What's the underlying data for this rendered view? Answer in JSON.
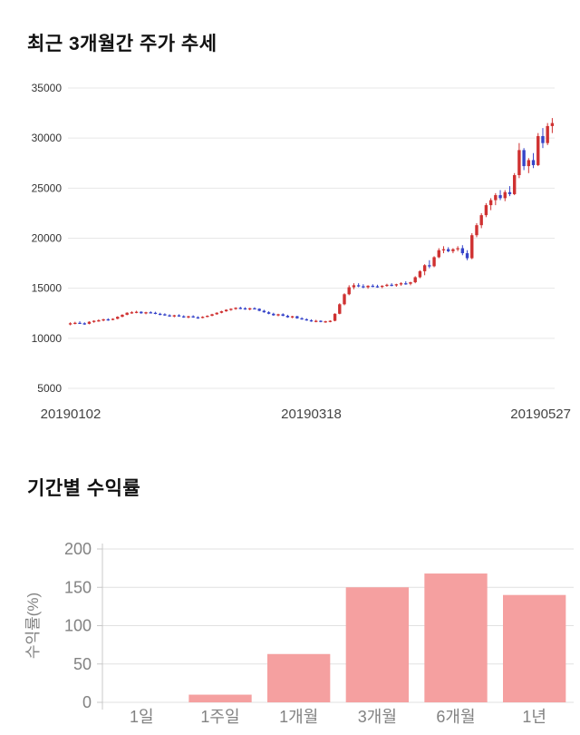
{
  "chart_data": [
    {
      "type": "candlestick",
      "title": "최근 3개월간 주가 추세",
      "ylim": [
        5000,
        35000
      ],
      "yticks": [
        35000,
        30000,
        25000,
        20000,
        15000,
        10000,
        5000
      ],
      "xticks": [
        "20190102",
        "20190318",
        "20190527"
      ],
      "up_color": "#cf3131",
      "down_color": "#3644c9",
      "grid": true,
      "legend": "none",
      "candles_ohlc": [
        [
          11450,
          11600,
          11300,
          11500
        ],
        [
          11500,
          11650,
          11400,
          11550
        ],
        [
          11550,
          11700,
          11450,
          11500
        ],
        [
          11500,
          11600,
          11350,
          11450
        ],
        [
          11450,
          11700,
          11400,
          11650
        ],
        [
          11650,
          11800,
          11550,
          11750
        ],
        [
          11750,
          11900,
          11650,
          11800
        ],
        [
          11800,
          11950,
          11700,
          11900
        ],
        [
          11900,
          12000,
          11750,
          11850
        ],
        [
          11850,
          12000,
          11800,
          11950
        ],
        [
          11950,
          12200,
          11900,
          12150
        ],
        [
          12150,
          12400,
          12100,
          12350
        ],
        [
          12350,
          12600,
          12300,
          12550
        ],
        [
          12550,
          12700,
          12450,
          12600
        ],
        [
          12600,
          12750,
          12500,
          12650
        ],
        [
          12650,
          12700,
          12450,
          12500
        ],
        [
          12500,
          12650,
          12400,
          12600
        ],
        [
          12600,
          12700,
          12500,
          12550
        ],
        [
          12550,
          12650,
          12400,
          12450
        ],
        [
          12450,
          12550,
          12300,
          12400
        ],
        [
          12400,
          12500,
          12250,
          12300
        ],
        [
          12300,
          12400,
          12150,
          12200
        ],
        [
          12200,
          12350,
          12100,
          12300
        ],
        [
          12300,
          12400,
          12150,
          12200
        ],
        [
          12200,
          12300,
          12050,
          12100
        ],
        [
          12100,
          12250,
          12000,
          12200
        ],
        [
          12200,
          12300,
          12050,
          12100
        ],
        [
          12100,
          12200,
          11950,
          12050
        ],
        [
          12050,
          12200,
          12000,
          12150
        ],
        [
          12150,
          12300,
          12100,
          12250
        ],
        [
          12250,
          12450,
          12200,
          12400
        ],
        [
          12400,
          12600,
          12350,
          12550
        ],
        [
          12550,
          12750,
          12500,
          12700
        ],
        [
          12700,
          12900,
          12650,
          12850
        ],
        [
          12850,
          13000,
          12750,
          12950
        ],
        [
          12950,
          13100,
          12850,
          13050
        ],
        [
          13050,
          13150,
          12900,
          13000
        ],
        [
          13000,
          13100,
          12850,
          12950
        ],
        [
          12950,
          13050,
          12800,
          13000
        ],
        [
          13000,
          13100,
          12900,
          12950
        ],
        [
          12950,
          13000,
          12700,
          12750
        ],
        [
          12750,
          12850,
          12550,
          12600
        ],
        [
          12600,
          12700,
          12400,
          12450
        ],
        [
          12450,
          12550,
          12250,
          12300
        ],
        [
          12300,
          12450,
          12200,
          12400
        ],
        [
          12400,
          12500,
          12200,
          12250
        ],
        [
          12250,
          12350,
          12050,
          12100
        ],
        [
          12100,
          12250,
          12000,
          12200
        ],
        [
          12200,
          12250,
          11950,
          12000
        ],
        [
          12000,
          12100,
          11850,
          11900
        ],
        [
          11900,
          12000,
          11750,
          11800
        ],
        [
          11800,
          11900,
          11650,
          11700
        ],
        [
          11700,
          11850,
          11600,
          11750
        ],
        [
          11750,
          11800,
          11600,
          11650
        ],
        [
          11650,
          11750,
          11550,
          11700
        ],
        [
          11700,
          11800,
          11600,
          11750
        ],
        [
          11750,
          12500,
          11700,
          12450
        ],
        [
          12450,
          13500,
          12400,
          13400
        ],
        [
          13400,
          14500,
          13300,
          14400
        ],
        [
          14400,
          15300,
          14300,
          15100
        ],
        [
          15100,
          15500,
          14900,
          15300
        ],
        [
          15300,
          15500,
          15100,
          15200
        ],
        [
          15200,
          15400,
          15000,
          15100
        ],
        [
          15100,
          15300,
          14950,
          15250
        ],
        [
          15250,
          15400,
          15100,
          15200
        ],
        [
          15200,
          15350,
          15050,
          15150
        ],
        [
          15150,
          15300,
          15000,
          15250
        ],
        [
          15250,
          15450,
          15150,
          15350
        ],
        [
          15350,
          15500,
          15200,
          15300
        ],
        [
          15300,
          15450,
          15150,
          15400
        ],
        [
          15400,
          15600,
          15250,
          15500
        ],
        [
          15500,
          15700,
          15350,
          15450
        ],
        [
          15450,
          15650,
          15300,
          15600
        ],
        [
          15600,
          16200,
          15500,
          16100
        ],
        [
          16100,
          16800,
          16000,
          16700
        ],
        [
          16700,
          17400,
          16300,
          17300
        ],
        [
          17300,
          17800,
          17000,
          17200
        ],
        [
          17200,
          18200,
          17100,
          18100
        ],
        [
          18100,
          19000,
          18000,
          18800
        ],
        [
          18800,
          19200,
          18500,
          18900
        ],
        [
          18900,
          19100,
          18600,
          18700
        ],
        [
          18700,
          19000,
          18500,
          18900
        ],
        [
          18900,
          19200,
          18700,
          19000
        ],
        [
          19000,
          19300,
          18300,
          18500
        ],
        [
          18500,
          18800,
          17800,
          18000
        ],
        [
          18000,
          20500,
          17900,
          20300
        ],
        [
          20300,
          21500,
          20100,
          21300
        ],
        [
          21300,
          22500,
          21000,
          22300
        ],
        [
          22300,
          23500,
          22100,
          23300
        ],
        [
          23300,
          24000,
          22800,
          23800
        ],
        [
          23800,
          24500,
          23300,
          24300
        ],
        [
          24300,
          24800,
          23800,
          24000
        ],
        [
          24000,
          24800,
          23700,
          24600
        ],
        [
          24600,
          25200,
          24200,
          24400
        ],
        [
          24400,
          26500,
          24300,
          26300
        ],
        [
          26300,
          29500,
          26000,
          28800
        ],
        [
          28800,
          29000,
          26800,
          27200
        ],
        [
          27200,
          28000,
          26500,
          27800
        ],
        [
          27800,
          28500,
          27000,
          27300
        ],
        [
          27300,
          30500,
          27200,
          30200
        ],
        [
          30200,
          31000,
          29000,
          29500
        ],
        [
          29500,
          31500,
          29300,
          31200
        ],
        [
          31200,
          32000,
          30500,
          31500
        ]
      ]
    },
    {
      "type": "bar",
      "title": "기간별 수익률",
      "categories": [
        "1일",
        "1주일",
        "1개월",
        "3개월",
        "6개월",
        "1년"
      ],
      "values": [
        0,
        10,
        63,
        150,
        168,
        140
      ],
      "xlabel": "",
      "ylabel": "수익률(%)",
      "ylim": [
        0,
        200
      ],
      "yticks": [
        0,
        50,
        100,
        150,
        200
      ],
      "bar_color": "#f5a0a0",
      "grid": true,
      "legend": "none"
    }
  ]
}
